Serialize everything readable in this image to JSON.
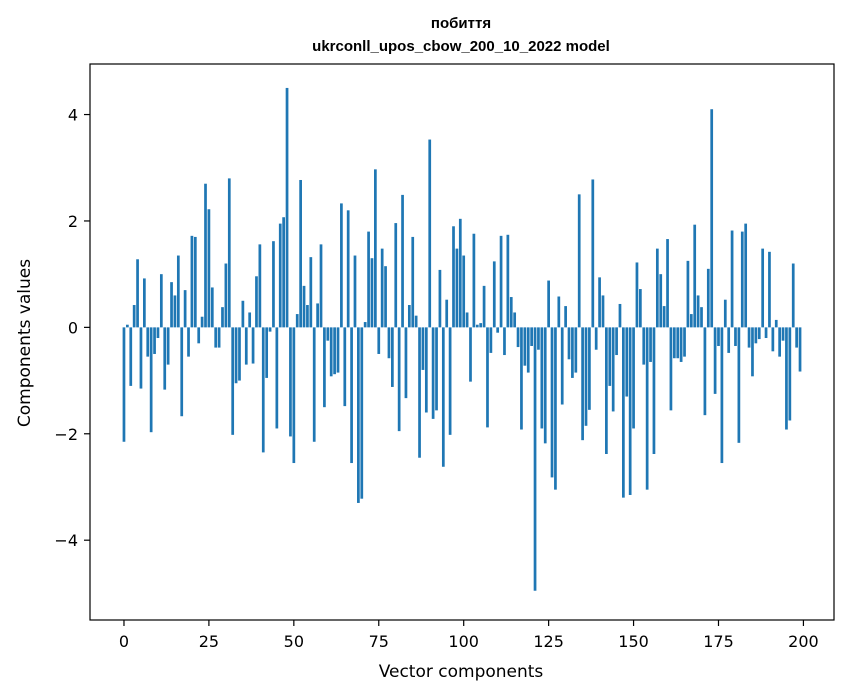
{
  "chart_data": {
    "type": "bar",
    "title": "побиття",
    "subtitle": "ukrconll_upos_cbow_200_10_2022 model",
    "xlabel": "Vector components",
    "ylabel": "Components values",
    "xlim": [
      -10,
      209
    ],
    "ylim": [
      -5.5,
      4.95
    ],
    "xticks": [
      0,
      25,
      50,
      75,
      100,
      125,
      150,
      175,
      200
    ],
    "yticks": [
      -4,
      -2,
      0,
      2,
      4
    ],
    "ytick_labels": [
      "−4",
      "−2",
      "0",
      "2",
      "4"
    ],
    "bar_color": "#1f77b4",
    "grid": false,
    "x": [
      0,
      1,
      2,
      3,
      4,
      5,
      6,
      7,
      8,
      9,
      10,
      11,
      12,
      13,
      14,
      15,
      16,
      17,
      18,
      19,
      20,
      21,
      22,
      23,
      24,
      25,
      26,
      27,
      28,
      29,
      30,
      31,
      32,
      33,
      34,
      35,
      36,
      37,
      38,
      39,
      40,
      41,
      42,
      43,
      44,
      45,
      46,
      47,
      48,
      49,
      50,
      51,
      52,
      53,
      54,
      55,
      56,
      57,
      58,
      59,
      60,
      61,
      62,
      63,
      64,
      65,
      66,
      67,
      68,
      69,
      70,
      71,
      72,
      73,
      74,
      75,
      76,
      77,
      78,
      79,
      80,
      81,
      82,
      83,
      84,
      85,
      86,
      87,
      88,
      89,
      90,
      91,
      92,
      93,
      94,
      95,
      96,
      97,
      98,
      99,
      100,
      101,
      102,
      103,
      104,
      105,
      106,
      107,
      108,
      109,
      110,
      111,
      112,
      113,
      114,
      115,
      116,
      117,
      118,
      119,
      120,
      121,
      122,
      123,
      124,
      125,
      126,
      127,
      128,
      129,
      130,
      131,
      132,
      133,
      134,
      135,
      136,
      137,
      138,
      139,
      140,
      141,
      142,
      143,
      144,
      145,
      146,
      147,
      148,
      149,
      150,
      151,
      152,
      153,
      154,
      155,
      156,
      157,
      158,
      159,
      160,
      161,
      162,
      163,
      164,
      165,
      166,
      167,
      168,
      169,
      170,
      171,
      172,
      173,
      174,
      175,
      176,
      177,
      178,
      179,
      180,
      181,
      182,
      183,
      184,
      185,
      186,
      187,
      188,
      189,
      190,
      191,
      192,
      193,
      194,
      195,
      196,
      197,
      198,
      199
    ],
    "values": [
      -2.15,
      0.05,
      -1.1,
      0.42,
      1.28,
      -1.15,
      0.92,
      -0.55,
      -1.97,
      -0.5,
      -0.2,
      1.0,
      -1.17,
      -0.7,
      0.85,
      0.6,
      1.35,
      -1.67,
      0.7,
      -0.55,
      1.72,
      1.7,
      -0.3,
      0.2,
      2.7,
      2.22,
      0.75,
      -0.38,
      -0.38,
      0.38,
      1.2,
      2.8,
      -2.02,
      -1.05,
      -1.0,
      0.5,
      -0.7,
      0.28,
      -0.68,
      0.96,
      1.56,
      -2.35,
      -0.95,
      -0.08,
      1.62,
      -1.9,
      1.95,
      2.07,
      4.5,
      -2.05,
      -2.55,
      0.25,
      2.77,
      0.78,
      0.42,
      1.32,
      -2.15,
      0.45,
      1.56,
      -1.5,
      -0.25,
      -0.92,
      -0.88,
      -0.85,
      2.33,
      -1.48,
      2.2,
      -2.55,
      1.35,
      -3.3,
      -3.22,
      0.1,
      1.8,
      1.3,
      2.97,
      -0.5,
      1.48,
      1.15,
      -0.58,
      -1.12,
      1.96,
      -1.95,
      2.49,
      -1.33,
      0.42,
      1.7,
      0.22,
      -2.45,
      -0.8,
      -1.6,
      3.53,
      -1.72,
      -1.56,
      1.08,
      -2.62,
      0.52,
      -2.02,
      1.9,
      1.48,
      2.04,
      1.35,
      0.28,
      -1.02,
      1.76,
      0.05,
      0.08,
      0.78,
      -1.88,
      -0.48,
      1.24,
      -0.1,
      1.72,
      -0.52,
      1.74,
      0.57,
      0.28,
      -0.37,
      -1.92,
      -0.72,
      -0.85,
      -0.35,
      -4.95,
      -0.42,
      -1.9,
      -2.18,
      0.88,
      -2.82,
      -3.05,
      0.58,
      -1.45,
      0.4,
      -0.6,
      -0.95,
      -0.85,
      2.5,
      -2.12,
      -1.85,
      -1.55,
      2.78,
      -0.42,
      0.94,
      0.6,
      -2.38,
      -1.1,
      -1.58,
      -0.52,
      0.44,
      -3.2,
      -1.3,
      -3.15,
      -1.9,
      1.22,
      0.72,
      -0.7,
      -3.05,
      -0.65,
      -2.38,
      1.48,
      1.0,
      0.4,
      1.66,
      -1.56,
      -0.58,
      -0.58,
      -0.65,
      -0.55,
      1.25,
      0.25,
      1.93,
      0.6,
      0.38,
      -1.65,
      1.1,
      4.1,
      -1.25,
      -0.35,
      -2.55,
      0.52,
      -0.48,
      1.82,
      -0.35,
      -2.17,
      1.8,
      1.95,
      -0.38,
      -0.92,
      -0.3,
      -0.22,
      1.48,
      -0.2,
      1.42,
      -0.45,
      0.14,
      -0.55,
      -0.25,
      -1.92,
      -1.75,
      1.2,
      -0.38,
      -0.83
    ]
  }
}
